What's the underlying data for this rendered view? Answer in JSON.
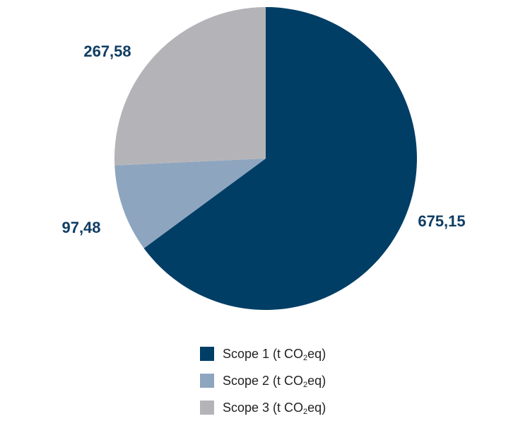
{
  "colors": {
    "label_text": "#0f3d63"
  },
  "chart_data": {
    "type": "pie",
    "categories": [
      "Scope 1 (t CO2eq)",
      "Scope 2 (t CO2eq)",
      "Scope 3 (t CO2eq)"
    ],
    "values": [
      675.15,
      97.48,
      267.58
    ],
    "value_labels": [
      "675,15",
      "97,48",
      "267,58"
    ],
    "colors": [
      "#003e66",
      "#8ea5bf",
      "#b4b4b8"
    ],
    "start_angle_deg": 0,
    "direction": "clockwise",
    "legend_position": "bottom",
    "legend": [
      {
        "prefix": "Scope 1 (t CO",
        "sub": "2",
        "suffix": "eq)"
      },
      {
        "prefix": "Scope 2 (t CO",
        "sub": "2",
        "suffix": "eq)"
      },
      {
        "prefix": "Scope 3 (t CO",
        "sub": "2",
        "suffix": "eq)"
      }
    ]
  }
}
